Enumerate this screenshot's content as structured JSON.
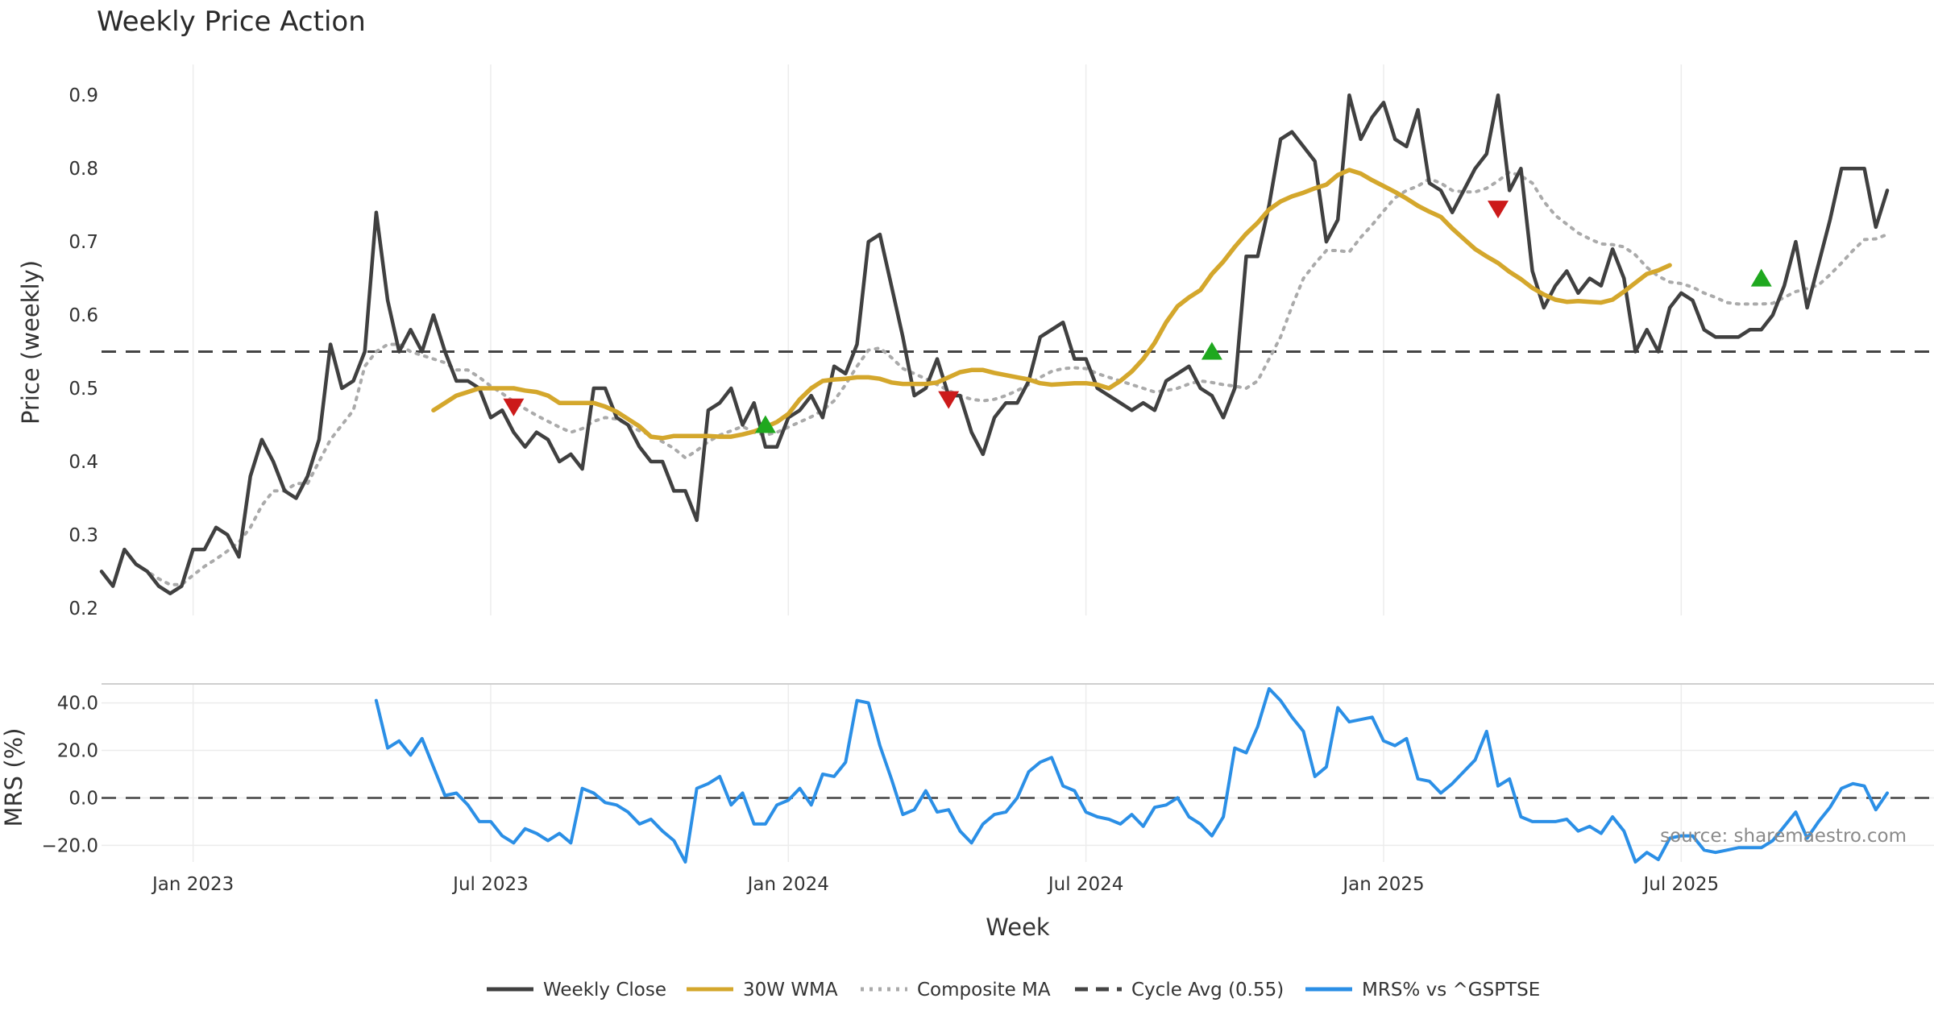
{
  "chart_data": {
    "type": "line",
    "title": "Weekly Price Action",
    "source": "source: sharemaestro.com",
    "xlabel": "Week",
    "x_ticks": [
      {
        "label": "Jan 2023",
        "week": 8
      },
      {
        "label": "Jul 2023",
        "week": 34
      },
      {
        "label": "Jan 2024",
        "week": 60
      },
      {
        "label": "Jul 2024",
        "week": 86
      },
      {
        "label": "Jan 2025",
        "week": 112
      },
      {
        "label": "Jul 2025",
        "week": 138
      }
    ],
    "x_range": [
      0,
      156
    ],
    "price_panel": {
      "ylabel": "Price (weekly)",
      "ylim": [
        0.19,
        0.92
      ],
      "yticks": [
        "0.2",
        "0.3",
        "0.4",
        "0.5",
        "0.6",
        "0.7",
        "0.8",
        "0.9"
      ],
      "cycle_avg": 0.55,
      "series": [
        {
          "name": "Weekly Close",
          "color": "#404040",
          "start": 0,
          "values": [
            0.25,
            0.23,
            0.28,
            0.26,
            0.25,
            0.23,
            0.22,
            0.23,
            0.28,
            0.28,
            0.31,
            0.3,
            0.27,
            0.38,
            0.43,
            0.4,
            0.36,
            0.35,
            0.38,
            0.43,
            0.56,
            0.5,
            0.51,
            0.55,
            0.74,
            0.62,
            0.55,
            0.58,
            0.55,
            0.6,
            0.55,
            0.51,
            0.51,
            0.5,
            0.46,
            0.47,
            0.44,
            0.42,
            0.44,
            0.43,
            0.4,
            0.41,
            0.39,
            0.5,
            0.5,
            0.46,
            0.45,
            0.42,
            0.4,
            0.4,
            0.36,
            0.36,
            0.32,
            0.47,
            0.48,
            0.5,
            0.45,
            0.48,
            0.42,
            0.42,
            0.46,
            0.47,
            0.49,
            0.46,
            0.53,
            0.52,
            0.56,
            0.7,
            0.71,
            0.64,
            0.57,
            0.49,
            0.5,
            0.54,
            0.49,
            0.49,
            0.44,
            0.41,
            0.46,
            0.48,
            0.48,
            0.51,
            0.57,
            0.58,
            0.59,
            0.54,
            0.54,
            0.5,
            0.49,
            0.48,
            0.47,
            0.48,
            0.47,
            0.51,
            0.52,
            0.53,
            0.5,
            0.49,
            0.46,
            0.5,
            0.68,
            0.68,
            0.75,
            0.84,
            0.85,
            0.83,
            0.81,
            0.7,
            0.73,
            0.9,
            0.84,
            0.87,
            0.89,
            0.84,
            0.83,
            0.88,
            0.78,
            0.77,
            0.74,
            0.77,
            0.8,
            0.82,
            0.9,
            0.77,
            0.8,
            0.66,
            0.61,
            0.64,
            0.66,
            0.63,
            0.65,
            0.64,
            0.69,
            0.65,
            0.55,
            0.58,
            0.55,
            0.61,
            0.63,
            0.62,
            0.58,
            0.57,
            0.57,
            0.57,
            0.58,
            0.58,
            0.6,
            0.64,
            0.7,
            0.61,
            0.67,
            0.73,
            0.8,
            0.8,
            0.8,
            0.72,
            0.77
          ]
        },
        {
          "name": "30W WMA",
          "color": "#d4a72c",
          "start": 29,
          "values": [
            0.47,
            0.48,
            0.49,
            0.495,
            0.5,
            0.5,
            0.5,
            0.5,
            0.497,
            0.495,
            0.49,
            0.48,
            0.48,
            0.48,
            0.48,
            0.475,
            0.468,
            0.458,
            0.448,
            0.434,
            0.432,
            0.435,
            0.435,
            0.435,
            0.435,
            0.434,
            0.434,
            0.437,
            0.441,
            0.447,
            0.454,
            0.465,
            0.485,
            0.5,
            0.51,
            0.512,
            0.513,
            0.515,
            0.515,
            0.513,
            0.508,
            0.506,
            0.506,
            0.506,
            0.508,
            0.515,
            0.522,
            0.525,
            0.525,
            0.521,
            0.518,
            0.515,
            0.512,
            0.507,
            0.505,
            0.506,
            0.507,
            0.507,
            0.505,
            0.5,
            0.51,
            0.523,
            0.54,
            0.562,
            0.59,
            0.612,
            0.624,
            0.634,
            0.656,
            0.673,
            0.693,
            0.711,
            0.726,
            0.744,
            0.755,
            0.762,
            0.767,
            0.773,
            0.778,
            0.791,
            0.798,
            0.793,
            0.784,
            0.776,
            0.768,
            0.759,
            0.749,
            0.741,
            0.734,
            0.718,
            0.704,
            0.69,
            0.68,
            0.671,
            0.659,
            0.649,
            0.637,
            0.628,
            0.621,
            0.618,
            0.619,
            0.618,
            0.617,
            0.621,
            0.632,
            0.644,
            0.656,
            0.661,
            0.668
          ]
        },
        {
          "name": "Composite MA",
          "color": "#aaaaaa",
          "start": 3,
          "values": [
            0.26,
            0.25,
            0.24,
            0.232,
            0.232,
            0.245,
            0.257,
            0.267,
            0.278,
            0.29,
            0.31,
            0.34,
            0.36,
            0.36,
            0.37,
            0.37,
            0.4,
            0.43,
            0.45,
            0.47,
            0.53,
            0.55,
            0.56,
            0.56,
            0.55,
            0.545,
            0.54,
            0.535,
            0.525,
            0.525,
            0.515,
            0.503,
            0.493,
            0.482,
            0.472,
            0.463,
            0.455,
            0.447,
            0.44,
            0.445,
            0.455,
            0.46,
            0.458,
            0.45,
            0.442,
            0.436,
            0.427,
            0.418,
            0.405,
            0.415,
            0.427,
            0.436,
            0.442,
            0.448,
            0.44,
            0.436,
            0.44,
            0.447,
            0.454,
            0.461,
            0.47,
            0.483,
            0.505,
            0.53,
            0.552,
            0.555,
            0.542,
            0.527,
            0.52,
            0.513,
            0.505,
            0.497,
            0.49,
            0.485,
            0.483,
            0.485,
            0.49,
            0.497,
            0.505,
            0.515,
            0.523,
            0.527,
            0.528,
            0.527,
            0.52,
            0.515,
            0.51,
            0.505,
            0.5,
            0.495,
            0.497,
            0.5,
            0.506,
            0.51,
            0.508,
            0.505,
            0.503,
            0.5,
            0.51,
            0.54,
            0.57,
            0.612,
            0.65,
            0.67,
            0.688,
            0.688,
            0.686,
            0.706,
            0.723,
            0.742,
            0.76,
            0.77,
            0.776,
            0.786,
            0.78,
            0.77,
            0.768,
            0.768,
            0.773,
            0.783,
            0.795,
            0.79,
            0.78,
            0.755,
            0.736,
            0.724,
            0.712,
            0.704,
            0.697,
            0.696,
            0.693,
            0.682,
            0.665,
            0.653,
            0.645,
            0.643,
            0.638,
            0.63,
            0.624,
            0.617,
            0.615,
            0.615,
            0.615,
            0.616,
            0.624,
            0.632,
            0.636,
            0.641,
            0.655,
            0.671,
            0.688,
            0.703,
            0.704,
            0.71
          ]
        }
      ],
      "markers": [
        {
          "type": "sell",
          "week": 36,
          "value": 0.475,
          "color": "#cc1a1a"
        },
        {
          "type": "buy",
          "week": 58,
          "value": 0.45,
          "color": "#1fa81f"
        },
        {
          "type": "sell",
          "week": 74,
          "value": 0.485,
          "color": "#cc1a1a"
        },
        {
          "type": "buy",
          "week": 97,
          "value": 0.55,
          "color": "#1fa81f"
        },
        {
          "type": "sell",
          "week": 122,
          "value": 0.745,
          "color": "#cc1a1a"
        },
        {
          "type": "buy",
          "week": 145,
          "value": 0.65,
          "color": "#1fa81f"
        }
      ]
    },
    "mrs_panel": {
      "ylabel": "MRS (%)",
      "ylim": [
        -27,
        48
      ],
      "yticks": [
        "40.0",
        "20.0",
        "0.0",
        "−20.0"
      ],
      "series": {
        "name": "MRS% vs ^GSPTSE",
        "color": "#2b8fe6",
        "start": 24,
        "values": [
          41,
          21,
          24,
          18,
          25,
          13,
          1,
          2,
          -3,
          -10,
          -10,
          -16,
          -19,
          -13,
          -15,
          -18,
          -15,
          -19,
          4,
          2,
          -2,
          -3,
          -6,
          -11,
          -9,
          -14,
          -18,
          -27,
          4,
          6,
          9,
          -3,
          2,
          -11,
          -11,
          -3,
          -1,
          4,
          -3,
          10,
          9,
          15,
          41,
          40,
          22,
          8,
          -7,
          -5,
          3,
          -6,
          -5,
          -14,
          -19,
          -11,
          -7,
          -6,
          0,
          11,
          15,
          17,
          5,
          3,
          -6,
          -8,
          -9,
          -11,
          -7,
          -12,
          -4,
          -3,
          0,
          -8,
          -11,
          -16,
          -8,
          21,
          19,
          30,
          46,
          41,
          34,
          28,
          9,
          13,
          38,
          32,
          33,
          34,
          24,
          22,
          25,
          8,
          7,
          2,
          6,
          11,
          16,
          28,
          5,
          8,
          -8,
          -10,
          -10,
          -10,
          -9,
          -14,
          -12,
          -15,
          -8,
          -14,
          -27,
          -23,
          -26,
          -17,
          -16,
          -16,
          -22,
          -23,
          -22,
          -21,
          -21,
          -21,
          -18,
          -12,
          -6,
          -17,
          -10,
          -4,
          4,
          6,
          5,
          -5,
          2
        ]
      }
    },
    "legend": [
      {
        "label": "Weekly Close",
        "style": "solid",
        "color": "#404040"
      },
      {
        "label": "30W WMA",
        "style": "solid",
        "color": "#d4a72c"
      },
      {
        "label": "Composite MA",
        "style": "dotted",
        "color": "#aaaaaa"
      },
      {
        "label": "Cycle Avg (0.55)",
        "style": "dashed",
        "color": "#444444"
      },
      {
        "label": "MRS% vs ^GSPTSE",
        "style": "solid",
        "color": "#2b8fe6"
      }
    ]
  }
}
